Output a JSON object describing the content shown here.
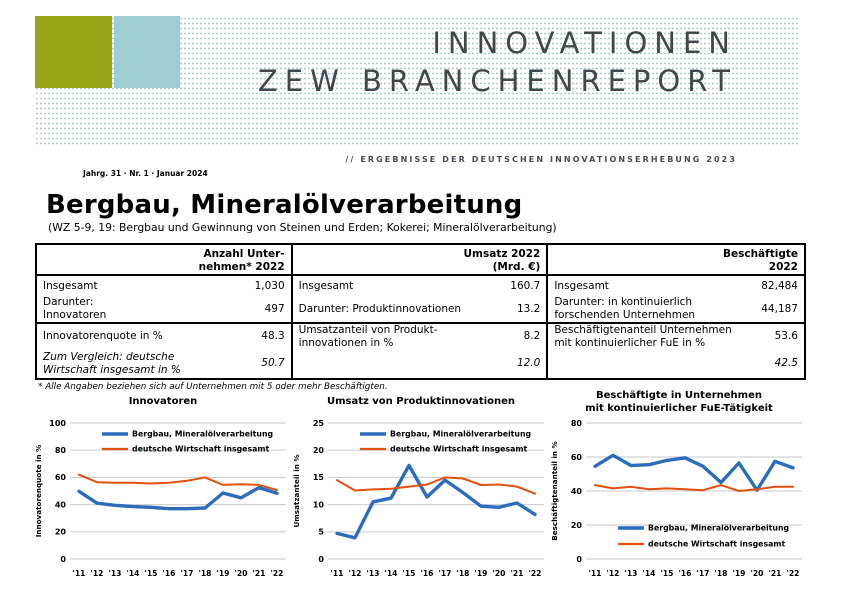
{
  "masthead": {
    "title_line1": "INNOVATIONEN",
    "title_line2": "ZEW BRANCHENREPORT",
    "subtitle": "// ERGEBNISSE DER DEUTSCHEN INNOVATIONSERHEBUNG 2023",
    "issue": "Jahrg. 31 · Nr. 1 · Januar 2024",
    "colors": {
      "olive": "#96a513",
      "light_blue": "#9dced3",
      "dots": "#a6ccd0",
      "title_gray": "#3f464c"
    }
  },
  "report": {
    "title": "Bergbau, Mineralölverarbeitung",
    "subtitle": "(WZ 5-9, 19: Bergbau und Gewinnung von Steinen und Erden; Kokerei; Mineralölverarbeitung)",
    "footnote": "* Alle Angaben beziehen sich auf Unternehmen mit 5 oder mehr Beschäftigten."
  },
  "table": {
    "groups": [
      {
        "header": "Anzahl Unter-\nnehmen* 2022",
        "rows": [
          {
            "label": "Insgesamt",
            "value": "1,030",
            "italic": false
          },
          {
            "label": "Darunter:\nInnovatoren",
            "value": "497",
            "italic": false
          },
          {
            "label": "Innovatorenquote in %",
            "value": "48.3",
            "italic": false
          },
          {
            "label": "Zum Vergleich: deutsche\nWirtschaft insgesamt in %",
            "value": "50.7",
            "italic": true
          }
        ]
      },
      {
        "header": "Umsatz 2022\n(Mrd. €)",
        "rows": [
          {
            "label": "Insgesamt",
            "value": "160.7",
            "italic": false
          },
          {
            "label": "Darunter: Produktinnovationen",
            "value": "13.2",
            "italic": false
          },
          {
            "label": "Umsatzanteil von Produkt-\ninnovationen in %",
            "value": "8.2",
            "italic": false
          },
          {
            "label": "",
            "value": "12.0",
            "italic": true
          }
        ]
      },
      {
        "header": "Beschäftigte\n2022",
        "rows": [
          {
            "label": "Insgesamt",
            "value": "82,484",
            "italic": false
          },
          {
            "label": "Darunter: in kontinuierlich\nforschenden Unternehmen",
            "value": "44,187",
            "italic": false
          },
          {
            "label": "Beschäftigtenanteil Unternehmen\nmit kontinuierlicher FuE in %",
            "value": "53.6",
            "italic": false
          },
          {
            "label": "",
            "value": "42.5",
            "italic": true
          }
        ]
      }
    ]
  },
  "chart_data": [
    {
      "type": "line",
      "title": "Innovatoren",
      "ylabel": "Innovatorenquote in %",
      "ylim": [
        0,
        100
      ],
      "ytick_step": 20,
      "grid": true,
      "legend_position": "top",
      "categories": [
        "'11",
        "'12",
        "'13",
        "'14",
        "'15",
        "'16",
        "'17",
        "'18",
        "'19",
        "'20",
        "'21",
        "'22"
      ],
      "series": [
        {
          "name": "Bergbau, Mineralölverarbeitung",
          "color": "#2b6cbd",
          "width": 3.4,
          "values": [
            49.8,
            41,
            39.5,
            38.5,
            38,
            37,
            37,
            37.5,
            48.5,
            45,
            52.5,
            48.3
          ]
        },
        {
          "name": "deutsche Wirtschaft insgesamt",
          "color": "#e2500f",
          "width": 2,
          "values": [
            62,
            56.5,
            56,
            56,
            55.5,
            56,
            57.5,
            60,
            54.5,
            55,
            54.5,
            50.7
          ]
        }
      ]
    },
    {
      "type": "line",
      "title": "Umsatz von Produktinnovationen",
      "ylabel": "Umsatzanteil in %",
      "ylim": [
        0,
        25
      ],
      "ytick_step": 5,
      "grid": true,
      "legend_position": "top",
      "categories": [
        "'11",
        "'12",
        "'13",
        "'14",
        "'15",
        "'16",
        "'17",
        "'18",
        "'19",
        "'20",
        "'21",
        "'22"
      ],
      "series": [
        {
          "name": "Bergbau, Mineralölverarbeitung",
          "color": "#2b6cbd",
          "width": 3.4,
          "values": [
            4.7,
            3.9,
            10.5,
            11.2,
            17.2,
            11.4,
            14.5,
            12.2,
            9.7,
            9.5,
            10.3,
            8.2
          ]
        },
        {
          "name": "deutsche Wirtschaft insgesamt",
          "color": "#e2500f",
          "width": 2,
          "values": [
            14.5,
            12.6,
            12.8,
            12.9,
            13.3,
            13.7,
            15.0,
            14.8,
            13.6,
            13.7,
            13.3,
            12.0
          ]
        }
      ]
    },
    {
      "type": "line",
      "title": "Beschäftigte in Unternehmen\nmit kontinuierlicher FuE-Tätigkeit",
      "ylabel": "Beschäftigtenanteil in %",
      "ylim": [
        0,
        80
      ],
      "ytick_step": 20,
      "grid": true,
      "legend_position": "bottom",
      "categories": [
        "'11",
        "'12",
        "'13",
        "'14",
        "'15",
        "'16",
        "'17",
        "'18",
        "'19",
        "'20",
        "'21",
        "'22"
      ],
      "series": [
        {
          "name": "Bergbau, Mineralölverarbeitung",
          "color": "#2b6cbd",
          "width": 3.4,
          "values": [
            54.5,
            61,
            55,
            55.5,
            58,
            59.5,
            54.5,
            45,
            56.5,
            40.5,
            57.5,
            53.6
          ]
        },
        {
          "name": "deutsche Wirtschaft insgesamt",
          "color": "#e2500f",
          "width": 2,
          "values": [
            43.5,
            41.5,
            42.5,
            41,
            41.5,
            41,
            40.5,
            43.5,
            40,
            41,
            42.5,
            42.5
          ]
        }
      ]
    }
  ]
}
